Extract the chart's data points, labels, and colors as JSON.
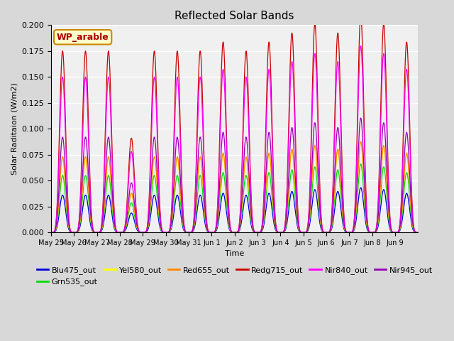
{
  "title": "Reflected Solar Bands",
  "ylabel": "Solar Raditaion (W/m2)",
  "xlabel": "Time",
  "annotation": "WP_arable",
  "ylim": [
    0.0,
    0.2
  ],
  "fig_bg": "#d8d8d8",
  "plot_bg": "#f0f0f0",
  "series": [
    {
      "name": "Blu475_out",
      "color": "#0000dd",
      "scale": 0.036
    },
    {
      "name": "Grn535_out",
      "color": "#00dd00",
      "scale": 0.055
    },
    {
      "name": "Yel580_out",
      "color": "#ffff00",
      "scale": 0.072
    },
    {
      "name": "Red655_out",
      "color": "#ff8800",
      "scale": 0.073
    },
    {
      "name": "Redg715_out",
      "color": "#cc0000",
      "scale": 0.175
    },
    {
      "name": "Nir840_out",
      "color": "#ff00ff",
      "scale": 0.15
    },
    {
      "name": "Nir945_out",
      "color": "#9900bb",
      "scale": 0.092
    }
  ],
  "xtick_labels": [
    "May 25",
    "May 26",
    "May 27",
    "May 28",
    "May 29",
    "May 30",
    "May 31",
    "Jun 1",
    "Jun 2",
    "Jun 3",
    "Jun 4",
    "Jun 5",
    "Jun 6",
    "Jun 7",
    "Jun 8",
    "Jun 9"
  ],
  "n_days": 16,
  "num_points": 16000,
  "day_peaks": [
    1.0,
    1.0,
    1.0,
    0.52,
    1.0,
    1.0,
    1.0,
    1.05,
    1.0,
    1.05,
    1.1,
    1.15,
    1.1,
    1.2,
    1.15,
    1.05
  ],
  "peak_sharpness": 6
}
